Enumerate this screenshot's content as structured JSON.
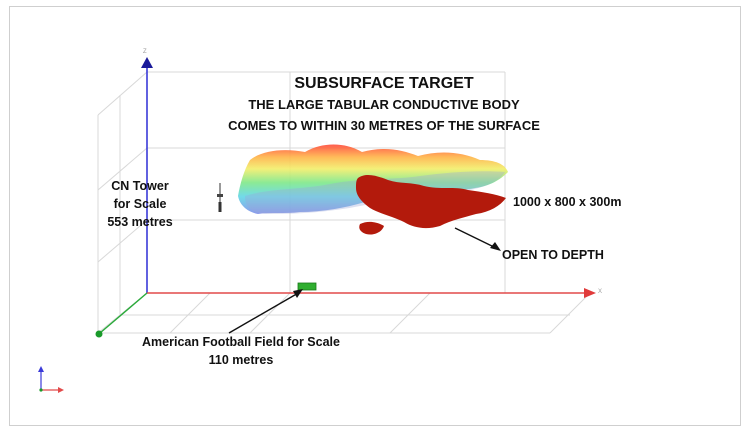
{
  "title": "SUBSURFACE TARGET",
  "subtitle_line1": "THE LARGE TABULAR CONDUCTIVE BODY",
  "subtitle_line2": "COMES TO WITHIN 30 METRES OF THE SURFACE",
  "dimensions_label": "1000 x 800 x 300m",
  "depth_label": "OPEN TO DEPTH",
  "cn_tower": {
    "line1": "CN Tower",
    "line2": "for Scale",
    "line3": "553 metres"
  },
  "football": {
    "line1": "American Football Field for Scale",
    "line2": "110 metres"
  },
  "axes": {
    "z": "Z",
    "x": "X"
  },
  "colors": {
    "target_body": "#b31a0c",
    "football_field": "#2fae2f",
    "z_axis": "#3a3ad8",
    "x_axis": "#e24a4a",
    "origin": "#1a9a2a"
  }
}
